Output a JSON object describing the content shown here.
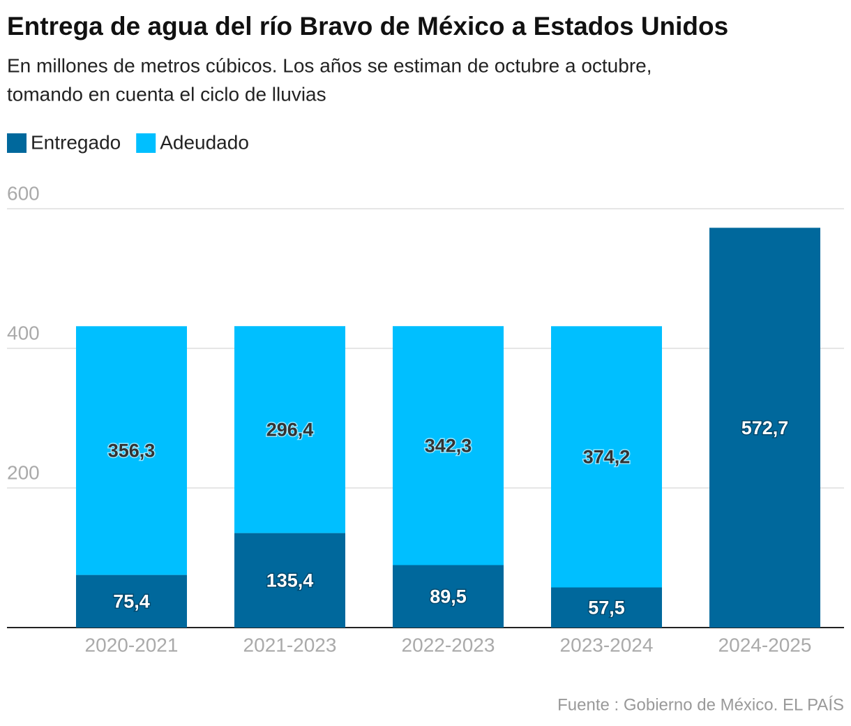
{
  "chart_data": {
    "type": "stacked-bar",
    "title": "Entrega de agua del río Bravo de México a Estados Unidos",
    "subtitle": [
      "En millones de metros cúbicos. Los años se estiman de octubre a octubre,",
      "tomando en cuenta el ciclo de lluvias"
    ],
    "categories": [
      "2020-2021",
      "2021-2023",
      "2022-2023",
      "2023-2024",
      "2024-2025"
    ],
    "series": [
      {
        "name": "Entregado",
        "color": "#00689c",
        "values": [
          75.4,
          135.4,
          89.5,
          57.5,
          572.7
        ],
        "value_labels": [
          "75,4",
          "135,4",
          "89,5",
          "57,5",
          "572,7"
        ]
      },
      {
        "name": "Adeudado",
        "color": "#00bfff",
        "values": [
          356.3,
          296.4,
          342.3,
          374.2,
          null
        ],
        "value_labels": [
          "356,3",
          "296,4",
          "342,3",
          "374,2",
          null
        ]
      }
    ],
    "ylim": [
      0,
      600
    ],
    "yticks": [
      200,
      400,
      600
    ],
    "grid": true,
    "source": "Fuente : Gobierno de México. EL PAÍS"
  }
}
